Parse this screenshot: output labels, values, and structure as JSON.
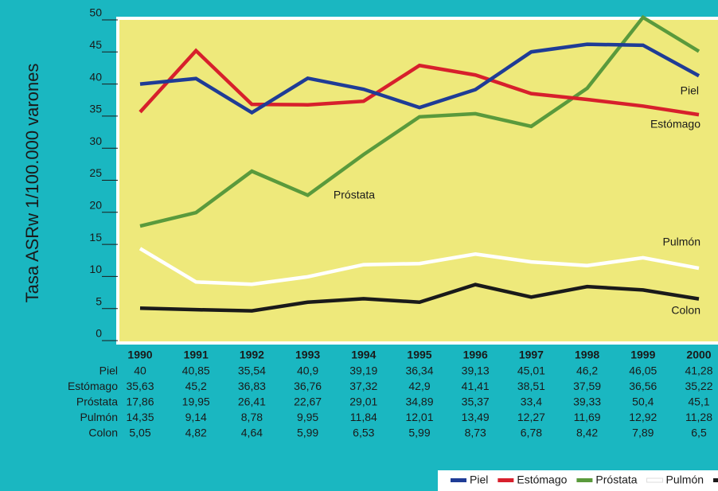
{
  "chart_data": {
    "type": "line",
    "y_axis_label": "Tasa ASRw 1/100.000 varones",
    "categories": [
      "1990",
      "1991",
      "1992",
      "1993",
      "1994",
      "1995",
      "1996",
      "1997",
      "1998",
      "1999",
      "2000"
    ],
    "ylim": [
      0,
      50
    ],
    "yticks": [
      0,
      5,
      10,
      15,
      20,
      25,
      30,
      35,
      40,
      45,
      50
    ],
    "series": [
      {
        "name": "Piel",
        "color": "#1f3c96",
        "values": [
          40,
          40.85,
          35.54,
          40.9,
          39.19,
          36.34,
          39.13,
          45.01,
          46.2,
          46.05,
          41.28
        ],
        "value_labels": [
          "40",
          "40,85",
          "35,54",
          "40,9",
          "39,19",
          "36,34",
          "39,13",
          "45,01",
          "46,2",
          "46,05",
          "41,28"
        ]
      },
      {
        "name": "Estómago",
        "color": "#d7202c",
        "values": [
          35.63,
          45.2,
          36.83,
          36.76,
          37.32,
          42.9,
          41.41,
          38.51,
          37.59,
          36.56,
          35.22
        ],
        "value_labels": [
          "35,63",
          "45,2",
          "36,83",
          "36,76",
          "37,32",
          "42,9",
          "41,41",
          "38,51",
          "37,59",
          "36,56",
          "35,22"
        ]
      },
      {
        "name": "Próstata",
        "color": "#5a9a3c",
        "values": [
          17.86,
          19.95,
          26.41,
          22.67,
          29.01,
          34.89,
          35.37,
          33.4,
          39.33,
          50.4,
          45.1
        ],
        "value_labels": [
          "17,86",
          "19,95",
          "26,41",
          "22,67",
          "29,01",
          "34,89",
          "35,37",
          "33,4",
          "39,33",
          "50,4",
          "45,1"
        ]
      },
      {
        "name": "Pulmón",
        "color": "#ffffff",
        "values": [
          14.35,
          9.14,
          8.78,
          9.95,
          11.84,
          12.01,
          13.49,
          12.27,
          11.69,
          12.92,
          11.28
        ],
        "value_labels": [
          "14,35",
          "9,14",
          "8,78",
          "9,95",
          "11,84",
          "12,01",
          "13,49",
          "12,27",
          "11,69",
          "12,92",
          "11,28"
        ]
      },
      {
        "name": "Colon",
        "color": "#1a1a1a",
        "values": [
          5.05,
          4.82,
          4.64,
          5.99,
          6.53,
          5.99,
          8.73,
          6.78,
          8.42,
          7.89,
          6.5
        ],
        "value_labels": [
          "5,05",
          "4,82",
          "4,64",
          "5,99",
          "6,53",
          "5,99",
          "8,73",
          "6,78",
          "8,42",
          "7,89",
          "6,5"
        ]
      }
    ]
  }
}
